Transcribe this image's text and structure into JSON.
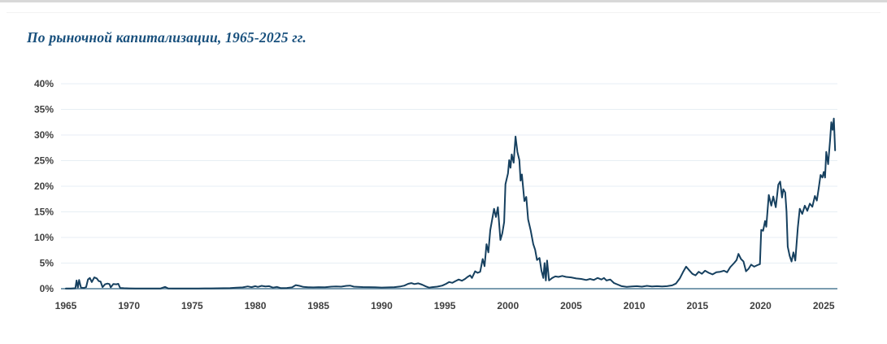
{
  "page": {
    "background": "#ffffff",
    "top_strip_color": "#d8d8d8",
    "divider_color": "#f3f3f3"
  },
  "header": {
    "title": "По рыночной капитализации, 1965-2025 гг.",
    "title_color": "#174f7c"
  },
  "chart_data": {
    "type": "line",
    "title": "По рыночной капитализации, 1965-2025 гг.",
    "xlabel": "",
    "ylabel": "",
    "xlim": [
      1965,
      2025
    ],
    "ylim": [
      0,
      40
    ],
    "grid": "horizontal",
    "legend": "none",
    "x_ticks": [
      1965,
      1970,
      1975,
      1980,
      1985,
      1990,
      1995,
      2000,
      2005,
      2010,
      2015,
      2020,
      2025
    ],
    "x_tick_labels": [
      "1965",
      "1970",
      "1975",
      "1980",
      "1985",
      "1990",
      "1995",
      "2000",
      "2005",
      "2010",
      "2015",
      "2020",
      "2025"
    ],
    "y_ticks": [
      0,
      5,
      10,
      15,
      20,
      25,
      30,
      35,
      40
    ],
    "y_tick_labels": [
      "0%",
      "5%",
      "10%",
      "15%",
      "20%",
      "25%",
      "30%",
      "35%",
      "40%"
    ],
    "line_color": "#16405f",
    "axis_color": "#7b9cb0",
    "grid_color": "#e7eef4",
    "tick_label_color": "#3f3f3f",
    "series": [
      {
        "points": [
          [
            1965.0,
            0.05
          ],
          [
            1965.4,
            0.05
          ],
          [
            1965.75,
            0.1
          ],
          [
            1965.85,
            1.6
          ],
          [
            1965.95,
            0.2
          ],
          [
            1966.05,
            1.7
          ],
          [
            1966.2,
            0.2
          ],
          [
            1966.45,
            0.15
          ],
          [
            1966.6,
            0.3
          ],
          [
            1966.75,
            1.8
          ],
          [
            1966.9,
            2.1
          ],
          [
            1967.05,
            1.3
          ],
          [
            1967.25,
            2.2
          ],
          [
            1967.45,
            2.0
          ],
          [
            1967.6,
            1.5
          ],
          [
            1967.75,
            1.4
          ],
          [
            1967.9,
            0.3
          ],
          [
            1968.1,
            0.85
          ],
          [
            1968.3,
            1.0
          ],
          [
            1968.45,
            0.9
          ],
          [
            1968.55,
            0.25
          ],
          [
            1968.75,
            0.9
          ],
          [
            1969.0,
            0.85
          ],
          [
            1969.15,
            0.95
          ],
          [
            1969.3,
            0.15
          ],
          [
            1969.6,
            0.1
          ],
          [
            1970,
            0.07
          ],
          [
            1970.5,
            0.05
          ],
          [
            1971,
            0.05
          ],
          [
            1971.5,
            0.05
          ],
          [
            1972,
            0.05
          ],
          [
            1972.5,
            0.05
          ],
          [
            1972.85,
            0.35
          ],
          [
            1973.1,
            0.07
          ],
          [
            1973.5,
            0.05
          ],
          [
            1974,
            0.04
          ],
          [
            1974.5,
            0.04
          ],
          [
            1975,
            0.05
          ],
          [
            1975.5,
            0.05
          ],
          [
            1976,
            0.06
          ],
          [
            1976.5,
            0.06
          ],
          [
            1977,
            0.08
          ],
          [
            1977.5,
            0.1
          ],
          [
            1978,
            0.12
          ],
          [
            1978.5,
            0.2
          ],
          [
            1979,
            0.25
          ],
          [
            1979.4,
            0.45
          ],
          [
            1979.7,
            0.3
          ],
          [
            1980,
            0.5
          ],
          [
            1980.2,
            0.35
          ],
          [
            1980.5,
            0.55
          ],
          [
            1980.8,
            0.45
          ],
          [
            1981.1,
            0.5
          ],
          [
            1981.4,
            0.2
          ],
          [
            1981.7,
            0.35
          ],
          [
            1982,
            0.12
          ],
          [
            1982.5,
            0.15
          ],
          [
            1982.9,
            0.25
          ],
          [
            1983.2,
            0.7
          ],
          [
            1983.5,
            0.55
          ],
          [
            1983.8,
            0.35
          ],
          [
            1984.2,
            0.28
          ],
          [
            1984.6,
            0.25
          ],
          [
            1985,
            0.3
          ],
          [
            1985.5,
            0.27
          ],
          [
            1986,
            0.4
          ],
          [
            1986.4,
            0.45
          ],
          [
            1986.8,
            0.4
          ],
          [
            1987.2,
            0.55
          ],
          [
            1987.5,
            0.6
          ],
          [
            1987.8,
            0.4
          ],
          [
            1988.1,
            0.37
          ],
          [
            1988.5,
            0.32
          ],
          [
            1989,
            0.3
          ],
          [
            1989.5,
            0.27
          ],
          [
            1990,
            0.22
          ],
          [
            1990.5,
            0.25
          ],
          [
            1991,
            0.3
          ],
          [
            1991.5,
            0.45
          ],
          [
            1991.8,
            0.6
          ],
          [
            1992.1,
            0.95
          ],
          [
            1992.35,
            1.1
          ],
          [
            1992.6,
            0.9
          ],
          [
            1992.9,
            1.05
          ],
          [
            1993.2,
            0.8
          ],
          [
            1993.5,
            0.45
          ],
          [
            1993.75,
            0.2
          ],
          [
            1994,
            0.3
          ],
          [
            1994.4,
            0.4
          ],
          [
            1994.8,
            0.6
          ],
          [
            1995.1,
            0.95
          ],
          [
            1995.35,
            1.3
          ],
          [
            1995.6,
            1.15
          ],
          [
            1995.85,
            1.5
          ],
          [
            1996.1,
            1.8
          ],
          [
            1996.35,
            1.55
          ],
          [
            1996.6,
            1.9
          ],
          [
            1996.8,
            2.3
          ],
          [
            1997.0,
            2.6
          ],
          [
            1997.15,
            2.1
          ],
          [
            1997.4,
            3.4
          ],
          [
            1997.6,
            3.1
          ],
          [
            1997.8,
            3.3
          ],
          [
            1998.0,
            5.8
          ],
          [
            1998.15,
            4.4
          ],
          [
            1998.3,
            8.7
          ],
          [
            1998.45,
            7.1
          ],
          [
            1998.6,
            11.4
          ],
          [
            1998.9,
            15.6
          ],
          [
            1999.05,
            14.0
          ],
          [
            1999.2,
            15.9
          ],
          [
            1999.4,
            9.5
          ],
          [
            1999.55,
            10.8
          ],
          [
            1999.7,
            13.0
          ],
          [
            1999.8,
            20.4
          ],
          [
            2000.0,
            22.5
          ],
          [
            2000.1,
            25.1
          ],
          [
            2000.2,
            23.6
          ],
          [
            2000.3,
            26.2
          ],
          [
            2000.45,
            24.6
          ],
          [
            2000.6,
            29.7
          ],
          [
            2000.75,
            26.7
          ],
          [
            2000.9,
            25.1
          ],
          [
            2001.0,
            21.1
          ],
          [
            2001.1,
            22.3
          ],
          [
            2001.3,
            17.1
          ],
          [
            2001.45,
            17.9
          ],
          [
            2001.6,
            13.5
          ],
          [
            2001.8,
            11.4
          ],
          [
            2002.0,
            8.7
          ],
          [
            2002.15,
            7.6
          ],
          [
            2002.3,
            5.6
          ],
          [
            2002.5,
            6.0
          ],
          [
            2002.65,
            3.5
          ],
          [
            2002.8,
            2.1
          ],
          [
            2002.9,
            5.0
          ],
          [
            2003.0,
            1.6
          ],
          [
            2003.1,
            5.5
          ],
          [
            2003.25,
            1.6
          ],
          [
            2003.5,
            2.1
          ],
          [
            2003.75,
            2.4
          ],
          [
            2004,
            2.3
          ],
          [
            2004.3,
            2.5
          ],
          [
            2004.6,
            2.3
          ],
          [
            2005,
            2.2
          ],
          [
            2005.4,
            2.0
          ],
          [
            2005.8,
            1.9
          ],
          [
            2006.2,
            1.7
          ],
          [
            2006.5,
            1.9
          ],
          [
            2006.8,
            1.7
          ],
          [
            2007.1,
            2.1
          ],
          [
            2007.4,
            1.8
          ],
          [
            2007.6,
            2.1
          ],
          [
            2007.8,
            1.6
          ],
          [
            2008.1,
            1.8
          ],
          [
            2008.4,
            1.1
          ],
          [
            2008.7,
            0.8
          ],
          [
            2009,
            0.5
          ],
          [
            2009.4,
            0.35
          ],
          [
            2009.8,
            0.45
          ],
          [
            2010.2,
            0.5
          ],
          [
            2010.6,
            0.4
          ],
          [
            2011,
            0.55
          ],
          [
            2011.4,
            0.45
          ],
          [
            2011.8,
            0.5
          ],
          [
            2012.2,
            0.45
          ],
          [
            2012.6,
            0.5
          ],
          [
            2013,
            0.65
          ],
          [
            2013.3,
            1.0
          ],
          [
            2013.6,
            2.0
          ],
          [
            2013.85,
            3.2
          ],
          [
            2014.1,
            4.3
          ],
          [
            2014.35,
            3.6
          ],
          [
            2014.6,
            2.9
          ],
          [
            2014.85,
            2.6
          ],
          [
            2015.1,
            3.3
          ],
          [
            2015.35,
            2.9
          ],
          [
            2015.6,
            3.5
          ],
          [
            2015.9,
            3.1
          ],
          [
            2016.2,
            2.8
          ],
          [
            2016.5,
            3.2
          ],
          [
            2016.8,
            3.3
          ],
          [
            2017.1,
            3.5
          ],
          [
            2017.35,
            3.2
          ],
          [
            2017.6,
            4.2
          ],
          [
            2017.9,
            5.0
          ],
          [
            2018.1,
            5.6
          ],
          [
            2018.25,
            6.8
          ],
          [
            2018.45,
            5.8
          ],
          [
            2018.65,
            5.3
          ],
          [
            2018.85,
            3.4
          ],
          [
            2019.05,
            3.9
          ],
          [
            2019.25,
            4.7
          ],
          [
            2019.5,
            4.3
          ],
          [
            2019.75,
            4.6
          ],
          [
            2019.95,
            4.8
          ],
          [
            2020.05,
            11.5
          ],
          [
            2020.2,
            11.3
          ],
          [
            2020.35,
            13.2
          ],
          [
            2020.45,
            12.1
          ],
          [
            2020.65,
            18.3
          ],
          [
            2020.85,
            16.2
          ],
          [
            2021.0,
            18.0
          ],
          [
            2021.2,
            15.9
          ],
          [
            2021.4,
            20.3
          ],
          [
            2021.55,
            20.9
          ],
          [
            2021.7,
            17.8
          ],
          [
            2021.8,
            19.4
          ],
          [
            2021.95,
            18.8
          ],
          [
            2022.05,
            15.1
          ],
          [
            2022.15,
            8.2
          ],
          [
            2022.3,
            6.4
          ],
          [
            2022.45,
            5.3
          ],
          [
            2022.6,
            7.1
          ],
          [
            2022.75,
            5.5
          ],
          [
            2022.95,
            11.9
          ],
          [
            2023.1,
            15.6
          ],
          [
            2023.3,
            14.6
          ],
          [
            2023.5,
            16.2
          ],
          [
            2023.7,
            15.2
          ],
          [
            2023.9,
            16.6
          ],
          [
            2024.1,
            16.0
          ],
          [
            2024.3,
            18.1
          ],
          [
            2024.45,
            17.2
          ],
          [
            2024.6,
            19.6
          ],
          [
            2024.75,
            22.2
          ],
          [
            2024.9,
            21.7
          ],
          [
            2025.0,
            22.8
          ],
          [
            2025.1,
            21.7
          ],
          [
            2025.2,
            26.7
          ],
          [
            2025.35,
            24.3
          ],
          [
            2025.5,
            29.0
          ],
          [
            2025.6,
            32.5
          ],
          [
            2025.7,
            31.0
          ],
          [
            2025.8,
            33.2
          ],
          [
            2025.9,
            27.0
          ]
        ]
      }
    ]
  }
}
